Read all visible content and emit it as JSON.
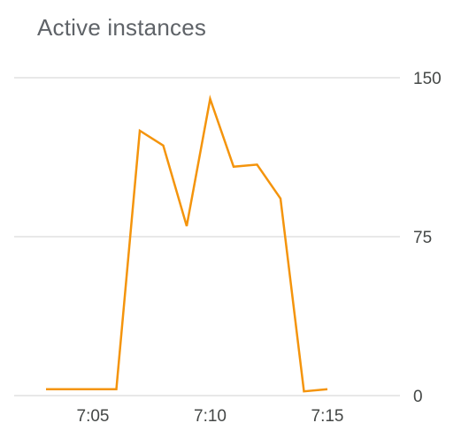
{
  "chart_data": {
    "type": "line",
    "title": "Active instances",
    "xlabel": "",
    "ylabel": "",
    "x": [
      "7:03",
      "7:04",
      "7:05",
      "7:06",
      "7:07",
      "7:08",
      "7:09",
      "7:10",
      "7:11",
      "7:12",
      "7:13",
      "7:14",
      "7:15"
    ],
    "series": [
      {
        "values": [
          3,
          3,
          3,
          3,
          125,
          118,
          80,
          140,
          108,
          109,
          93,
          2,
          3
        ]
      }
    ],
    "x_ticks": [
      "7:05",
      "7:10",
      "7:15"
    ],
    "y_ticks": [
      "0",
      "75",
      "150"
    ],
    "ylim": [
      0,
      150
    ],
    "grid": true,
    "y_axis_side": "right",
    "line_color": "#f4940c"
  }
}
